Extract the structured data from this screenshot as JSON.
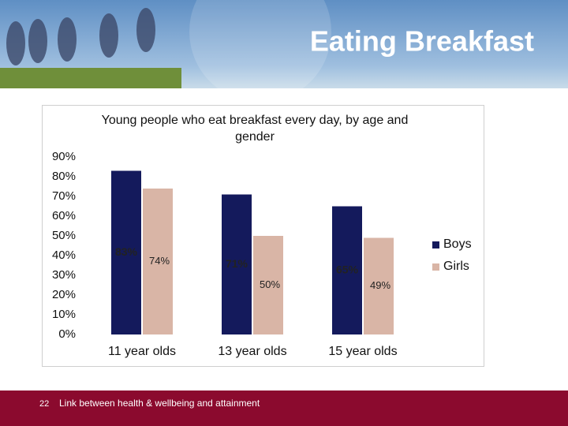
{
  "slide": {
    "title": "Eating Breakfast",
    "page_number": "22",
    "footer": "Link between health & wellbeing and attainment"
  },
  "chart_data": {
    "type": "bar",
    "title": "Young people who eat breakfast every day, by age and gender",
    "categories": [
      "11 year olds",
      "13 year olds",
      "15 year olds"
    ],
    "series": [
      {
        "name": "Boys",
        "color": "#141a5c",
        "values": [
          83,
          71,
          65
        ],
        "value_labels": [
          "83%",
          "71%",
          "65%"
        ]
      },
      {
        "name": "Girls",
        "color": "#d9b5a6",
        "values": [
          74,
          50,
          49
        ],
        "value_labels": [
          "74%",
          "50%",
          "49%"
        ]
      }
    ],
    "ylim": [
      0,
      90
    ],
    "yticks": [
      {
        "value": 0,
        "label": "0%"
      },
      {
        "value": 10,
        "label": "10%"
      },
      {
        "value": 20,
        "label": "20%"
      },
      {
        "value": 30,
        "label": "30%"
      },
      {
        "value": 40,
        "label": "40%"
      },
      {
        "value": 50,
        "label": "50%"
      },
      {
        "value": 60,
        "label": "60%"
      },
      {
        "value": 70,
        "label": "70%"
      },
      {
        "value": 80,
        "label": "80%"
      },
      {
        "value": 90,
        "label": "90%"
      }
    ],
    "grid": false,
    "legend": "right"
  }
}
